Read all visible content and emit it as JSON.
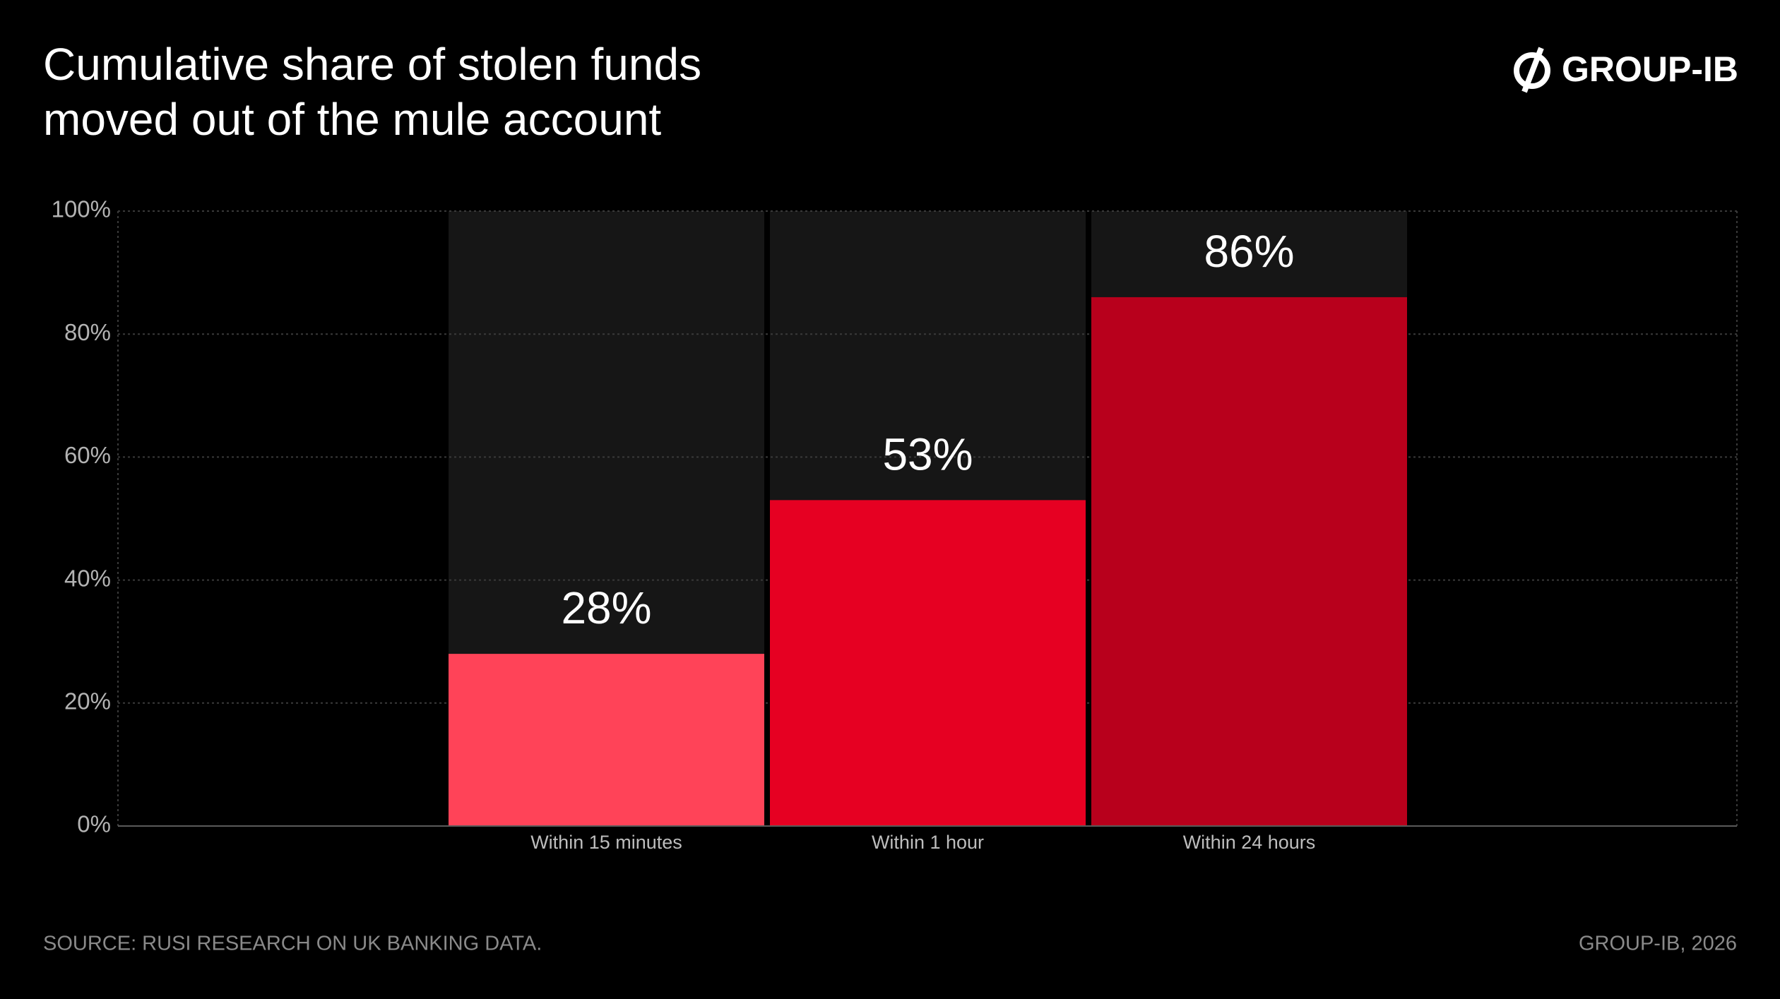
{
  "brand": "GROUP-IB",
  "source": "SOURCE: RUSI RESEARCH ON UK BANKING DATA.",
  "credit": "GROUP-IB, 2026",
  "chart_data": {
    "type": "bar",
    "title": [
      "Cumulative share of stolen funds",
      "moved out of the mule account"
    ],
    "categories": [
      "Within 15 minutes",
      "Within 1 hour",
      "Within 24 hours"
    ],
    "values": [
      28,
      53,
      86
    ],
    "value_labels": [
      "28%",
      "53%",
      "86%"
    ],
    "colors": [
      "#ff4358",
      "#e60022",
      "#b8001c"
    ],
    "ylim": [
      0,
      100
    ],
    "yticks": [
      {
        "value": 0,
        "label": "0%"
      },
      {
        "value": 20,
        "label": "20%"
      },
      {
        "value": 40,
        "label": "40%"
      },
      {
        "value": 60,
        "label": "60%"
      },
      {
        "value": 80,
        "label": "80%"
      },
      {
        "value": 100,
        "label": "100%"
      }
    ],
    "grid": true
  }
}
